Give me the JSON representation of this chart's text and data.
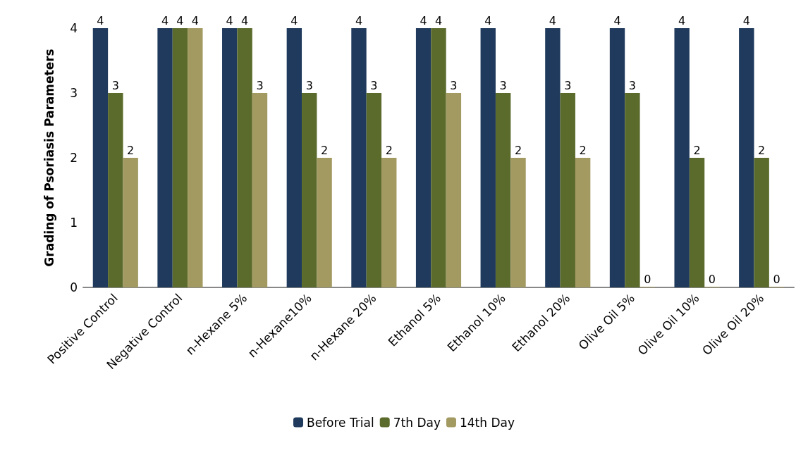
{
  "chart_data": {
    "type": "bar",
    "ylabel": "Grading of Psoriasis Parameters",
    "categories": [
      "Positive Control",
      "Negative Control",
      "n-Hexane 5%",
      "n-Hexane10%",
      "n-Hexane 20%",
      "Ethanol 5%",
      "Ethanol 10%",
      "Ethanol 20%",
      "Olive Oil 5%",
      "Olive Oil 10%",
      "Olive Oil 20%"
    ],
    "series": [
      {
        "name": "Before Trial",
        "color": "#1f3a5c",
        "values": [
          4,
          4,
          4,
          4,
          4,
          4,
          4,
          4,
          4,
          4,
          4
        ]
      },
      {
        "name": "7th Day",
        "color": "#5b6b2c",
        "values": [
          3,
          4,
          4,
          3,
          3,
          4,
          3,
          3,
          3,
          2,
          2
        ]
      },
      {
        "name": "14th Day",
        "color": "#a39a62",
        "values": [
          2,
          4,
          3,
          2,
          2,
          3,
          2,
          2,
          0,
          0,
          0
        ]
      }
    ],
    "ylim": [
      0,
      4
    ],
    "yticks": [
      0,
      1,
      2,
      3,
      4
    ],
    "grid": false,
    "legend": "bottom",
    "data_labels": true
  }
}
